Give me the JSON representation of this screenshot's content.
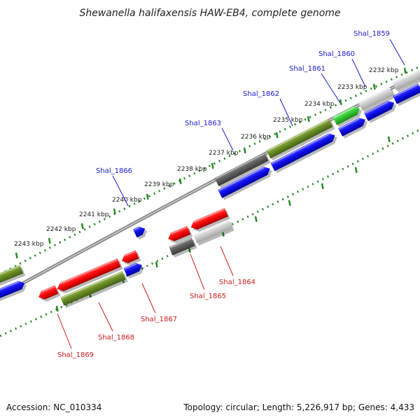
{
  "title": "Shewanella halifaxensis HAW-EB4, complete genome",
  "footer": {
    "accession": "Accession: NC_010334",
    "topology": "Topology: circular; Length: 5,226,917 bp; Genes: 4,433"
  },
  "scale_labels": [
    "2232 kbp",
    "2233 kbp",
    "2234 kbp",
    "2235 kbp",
    "2236 kbp",
    "2237 kbp",
    "2238 kbp",
    "2239 kbp",
    "2240 kbp",
    "2241 kbp",
    "2242 kbp",
    "2243 kbp"
  ],
  "colors": {
    "forward_label": "#1a1acc",
    "reverse_label": "#cc1a1a",
    "backbone": "#8a8a8a",
    "ruler": "#2a8a2a",
    "red": "#ee1111",
    "blue": "#1111ee",
    "olive": "#6b8e23",
    "dark_gray": "#606060",
    "light_gray": "#c8c8c8",
    "green": "#33cc33"
  },
  "genes_top": [
    {
      "label": "Shal_1859",
      "color": "blue"
    },
    {
      "label": "Shal_1860",
      "color": "light_gray"
    },
    {
      "label": "Shal_1861",
      "color": "green"
    },
    {
      "label": "Shal_1862",
      "color": "olive"
    },
    {
      "label": "Shal_1863",
      "color": "dark_gray"
    },
    {
      "label": "Shal_1866",
      "color": "blue"
    }
  ],
  "genes_bottom": [
    {
      "label": "Shal_1864",
      "color": "light_gray"
    },
    {
      "label": "Shal_1865",
      "color": "dark_gray"
    },
    {
      "label": "Shal_1867",
      "color": "blue"
    },
    {
      "label": "Shal_1868",
      "color": "olive"
    },
    {
      "label": "Shal_1869",
      "color": "red"
    }
  ]
}
